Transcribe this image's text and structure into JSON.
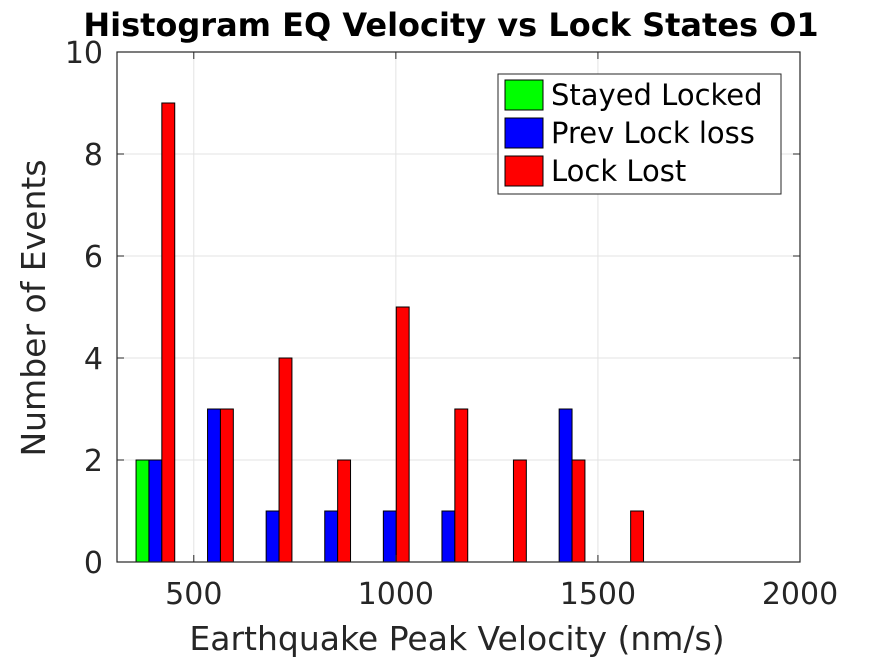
{
  "chart_data": {
    "type": "bar",
    "title": "Histogram EQ Velocity vs Lock States O1",
    "xlabel": "Earthquake Peak Velocity (nm/s)",
    "ylabel": "Number of Events",
    "xlim": [
      310,
      2000
    ],
    "ylim": [
      0,
      10
    ],
    "x_ticks": [
      "500",
      "1000",
      "1500",
      "2000"
    ],
    "y_ticks": [
      "0",
      "2",
      "4",
      "6",
      "8",
      "10"
    ],
    "grid": true,
    "legend_position": "top-right",
    "bin_centers": [
      405,
      550,
      695,
      840,
      985,
      1130,
      1275,
      1420,
      1565
    ],
    "series": [
      {
        "name": "Stayed Locked",
        "color": "#00ff00",
        "values": [
          2,
          0,
          0,
          0,
          0,
          0,
          0,
          0,
          0
        ]
      },
      {
        "name": "Prev Lock loss",
        "color": "#0000ff",
        "values": [
          2,
          3,
          1,
          1,
          1,
          1,
          0,
          3,
          0
        ]
      },
      {
        "name": "Lock Lost",
        "color": "#ff0000",
        "values": [
          9,
          3,
          4,
          2,
          5,
          3,
          2,
          2,
          1
        ]
      }
    ]
  }
}
